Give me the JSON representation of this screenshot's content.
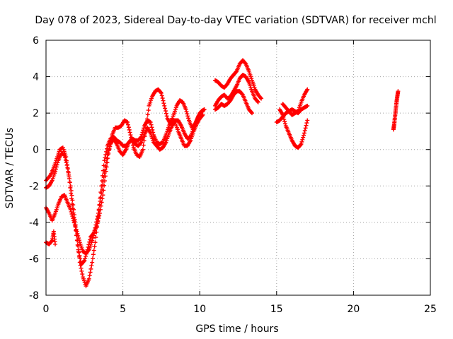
{
  "chart_data": {
    "type": "scatter",
    "title": "Day 078 of 2023, Sidereal Day-to-day VTEC variation (SDTVAR) for receiver mchl",
    "xlabel": "GPS time / hours",
    "ylabel": "SDTVAR / TECUs",
    "xlim": [
      0,
      25
    ],
    "ylim": [
      -8,
      6
    ],
    "xticks": [
      0,
      5,
      10,
      15,
      20,
      25
    ],
    "yticks": [
      -8,
      -6,
      -4,
      -2,
      0,
      2,
      4,
      6
    ],
    "grid": true,
    "marker": "+",
    "colors": {
      "series": "#ff0000",
      "grid": "#a0a0a0",
      "axis": "#000000"
    },
    "series": [
      {
        "values": [
          [
            0.0,
            -1.7
          ],
          [
            0.3,
            -1.4
          ],
          [
            0.5,
            -1.0
          ],
          [
            0.7,
            -0.5
          ],
          [
            0.9,
            0.0
          ],
          [
            1.1,
            0.1
          ],
          [
            1.3,
            -0.4
          ],
          [
            1.5,
            -1.5
          ],
          [
            1.7,
            -3.0
          ],
          [
            1.9,
            -4.2
          ],
          [
            2.1,
            -5.5
          ],
          [
            2.3,
            -6.3
          ],
          [
            2.5,
            -6.1
          ],
          [
            2.7,
            -5.5
          ],
          [
            2.9,
            -4.8
          ],
          [
            3.1,
            -4.6
          ],
          [
            3.3,
            -4.2
          ],
          [
            3.5,
            -3.5
          ],
          [
            3.7,
            -2.5
          ],
          [
            3.9,
            -1.2
          ],
          [
            4.1,
            0.0
          ],
          [
            4.3,
            0.8
          ],
          [
            4.5,
            1.2
          ],
          [
            4.7,
            1.2
          ],
          [
            4.9,
            1.3
          ],
          [
            5.1,
            1.6
          ],
          [
            5.3,
            1.5
          ],
          [
            5.5,
            0.8
          ],
          [
            5.7,
            0.1
          ],
          [
            5.9,
            -0.3
          ],
          [
            6.1,
            -0.4
          ],
          [
            6.3,
            0.0
          ],
          [
            6.5,
            1.2
          ],
          [
            6.7,
            2.4
          ],
          [
            6.9,
            2.9
          ],
          [
            7.1,
            3.2
          ],
          [
            7.3,
            3.3
          ],
          [
            7.5,
            3.1
          ],
          [
            7.7,
            2.4
          ],
          [
            7.9,
            1.7
          ],
          [
            8.1,
            1.4
          ],
          [
            8.3,
            1.9
          ],
          [
            8.5,
            2.4
          ],
          [
            8.7,
            2.7
          ],
          [
            8.9,
            2.6
          ],
          [
            9.1,
            2.2
          ],
          [
            9.3,
            1.6
          ],
          [
            9.5,
            1.2
          ],
          [
            9.7,
            1.4
          ],
          [
            9.9,
            1.8
          ],
          [
            10.1,
            2.1
          ],
          [
            10.3,
            2.2
          ]
        ]
      },
      {
        "values": [
          [
            0.0,
            -2.1
          ],
          [
            0.2,
            -2.0
          ],
          [
            0.4,
            -1.7
          ],
          [
            0.6,
            -1.2
          ],
          [
            0.8,
            -0.6
          ],
          [
            1.0,
            -0.2
          ],
          [
            1.2,
            -0.3
          ],
          [
            1.4,
            -1.0
          ],
          [
            1.6,
            -2.0
          ],
          [
            1.8,
            -3.3
          ],
          [
            2.0,
            -4.7
          ],
          [
            2.2,
            -6.2
          ],
          [
            2.4,
            -7.0
          ],
          [
            2.6,
            -7.5
          ],
          [
            2.8,
            -7.1
          ],
          [
            3.0,
            -6.2
          ],
          [
            3.2,
            -5.1
          ],
          [
            3.4,
            -3.7
          ],
          [
            3.6,
            -2.0
          ],
          [
            3.8,
            -0.6
          ],
          [
            4.0,
            0.2
          ],
          [
            4.2,
            0.6
          ],
          [
            4.4,
            0.7
          ],
          [
            4.6,
            0.5
          ],
          [
            4.8,
            0.4
          ],
          [
            5.0,
            0.2
          ],
          [
            5.2,
            0.2
          ],
          [
            5.4,
            0.4
          ],
          [
            5.6,
            0.6
          ],
          [
            5.8,
            0.5
          ],
          [
            6.0,
            0.5
          ],
          [
            6.2,
            0.7
          ],
          [
            6.4,
            1.3
          ],
          [
            6.6,
            1.6
          ],
          [
            6.8,
            1.5
          ],
          [
            7.0,
            0.8
          ],
          [
            7.2,
            0.4
          ],
          [
            7.4,
            0.3
          ],
          [
            7.6,
            0.4
          ],
          [
            7.8,
            0.8
          ],
          [
            8.0,
            1.3
          ],
          [
            8.2,
            1.7
          ],
          [
            8.4,
            1.5
          ],
          [
            8.6,
            1.0
          ],
          [
            8.8,
            0.6
          ],
          [
            9.0,
            0.2
          ],
          [
            9.2,
            0.2
          ],
          [
            9.4,
            0.5
          ],
          [
            9.6,
            1.0
          ],
          [
            9.8,
            1.4
          ],
          [
            10.0,
            1.7
          ],
          [
            10.2,
            1.9
          ]
        ]
      },
      {
        "values": [
          [
            0.0,
            -3.2
          ],
          [
            0.2,
            -3.5
          ],
          [
            0.4,
            -3.9
          ],
          [
            0.6,
            -3.5
          ],
          [
            0.8,
            -3.0
          ],
          [
            1.0,
            -2.6
          ],
          [
            1.2,
            -2.5
          ],
          [
            1.4,
            -2.9
          ],
          [
            1.6,
            -3.3
          ],
          [
            1.8,
            -3.9
          ],
          [
            2.0,
            -4.5
          ],
          [
            2.2,
            -5.1
          ],
          [
            2.4,
            -5.6
          ],
          [
            2.6,
            -5.7
          ],
          [
            2.8,
            -5.5
          ],
          [
            3.0,
            -5.0
          ],
          [
            3.2,
            -4.3
          ],
          [
            3.4,
            -3.5
          ],
          [
            3.6,
            -2.4
          ],
          [
            3.8,
            -1.3
          ],
          [
            4.0,
            -0.3
          ],
          [
            4.2,
            0.3
          ],
          [
            4.4,
            0.6
          ],
          [
            4.6,
            0.3
          ],
          [
            4.8,
            -0.1
          ],
          [
            5.0,
            -0.3
          ],
          [
            5.2,
            0.0
          ],
          [
            5.4,
            0.4
          ],
          [
            5.6,
            0.6
          ],
          [
            5.8,
            0.3
          ],
          [
            6.0,
            0.2
          ],
          [
            6.2,
            0.4
          ],
          [
            6.4,
            0.8
          ],
          [
            6.6,
            1.2
          ],
          [
            6.8,
            0.9
          ],
          [
            7.0,
            0.4
          ],
          [
            7.2,
            0.2
          ],
          [
            7.4,
            0.0
          ],
          [
            7.6,
            0.1
          ],
          [
            7.8,
            0.4
          ],
          [
            8.0,
            0.9
          ],
          [
            8.2,
            1.3
          ],
          [
            8.4,
            1.6
          ],
          [
            8.6,
            1.6
          ],
          [
            8.8,
            1.3
          ],
          [
            9.0,
            0.9
          ],
          [
            9.2,
            0.6
          ],
          [
            9.4,
            0.7
          ],
          [
            9.6,
            1.2
          ],
          [
            9.8,
            1.6
          ],
          [
            10.0,
            2.0
          ],
          [
            10.2,
            2.1
          ]
        ]
      },
      {
        "values": [
          [
            0.0,
            -5.1
          ],
          [
            0.2,
            -5.2
          ],
          [
            0.4,
            -5.0
          ],
          [
            0.5,
            -4.5
          ],
          [
            0.6,
            -5.2
          ]
        ]
      },
      {
        "values": [
          [
            11.0,
            3.8
          ],
          [
            11.2,
            3.7
          ],
          [
            11.4,
            3.5
          ],
          [
            11.6,
            3.4
          ],
          [
            11.8,
            3.6
          ],
          [
            12.0,
            3.9
          ],
          [
            12.2,
            4.1
          ],
          [
            12.4,
            4.3
          ],
          [
            12.6,
            4.7
          ],
          [
            12.8,
            4.9
          ],
          [
            13.0,
            4.7
          ],
          [
            13.2,
            4.3
          ],
          [
            13.4,
            3.8
          ],
          [
            13.6,
            3.3
          ],
          [
            13.8,
            3.0
          ],
          [
            14.0,
            2.8
          ]
        ]
      },
      {
        "values": [
          [
            11.0,
            2.4
          ],
          [
            11.2,
            2.7
          ],
          [
            11.4,
            2.9
          ],
          [
            11.6,
            3.0
          ],
          [
            11.8,
            2.8
          ],
          [
            12.0,
            2.9
          ],
          [
            12.2,
            3.2
          ],
          [
            12.4,
            3.5
          ],
          [
            12.6,
            3.9
          ],
          [
            12.8,
            4.1
          ],
          [
            13.0,
            4.0
          ],
          [
            13.2,
            3.7
          ],
          [
            13.4,
            3.2
          ],
          [
            13.6,
            2.8
          ],
          [
            13.8,
            2.6
          ]
        ]
      },
      {
        "values": [
          [
            11.0,
            2.2
          ],
          [
            11.2,
            2.3
          ],
          [
            11.4,
            2.5
          ],
          [
            11.6,
            2.4
          ],
          [
            11.8,
            2.5
          ],
          [
            12.0,
            2.7
          ],
          [
            12.2,
            3.0
          ],
          [
            12.4,
            3.2
          ],
          [
            12.6,
            3.2
          ],
          [
            12.8,
            3.0
          ],
          [
            13.0,
            2.6
          ],
          [
            13.2,
            2.2
          ],
          [
            13.4,
            2.0
          ]
        ]
      },
      {
        "values": [
          [
            15.0,
            1.5
          ],
          [
            15.2,
            1.6
          ],
          [
            15.4,
            1.8
          ],
          [
            15.6,
            2.0
          ],
          [
            15.8,
            2.1
          ],
          [
            16.0,
            2.2
          ],
          [
            16.2,
            2.1
          ],
          [
            16.4,
            2.0
          ],
          [
            16.6,
            2.2
          ],
          [
            16.8,
            2.3
          ],
          [
            17.0,
            2.4
          ]
        ]
      },
      {
        "values": [
          [
            15.2,
            2.2
          ],
          [
            15.4,
            1.9
          ],
          [
            15.6,
            1.3
          ],
          [
            15.8,
            0.9
          ],
          [
            16.0,
            0.5
          ],
          [
            16.2,
            0.2
          ],
          [
            16.4,
            0.1
          ],
          [
            16.6,
            0.3
          ],
          [
            16.8,
            0.9
          ],
          [
            17.0,
            1.6
          ]
        ]
      },
      {
        "values": [
          [
            15.4,
            2.5
          ],
          [
            15.6,
            2.3
          ],
          [
            15.8,
            2.1
          ],
          [
            16.0,
            1.9
          ],
          [
            16.2,
            2.0
          ],
          [
            16.4,
            2.1
          ],
          [
            16.6,
            2.6
          ],
          [
            16.8,
            3.0
          ],
          [
            17.0,
            3.3
          ]
        ]
      },
      {
        "values": [
          [
            22.6,
            1.1
          ],
          [
            22.65,
            1.4
          ],
          [
            22.7,
            1.8
          ],
          [
            22.75,
            2.2
          ],
          [
            22.8,
            2.6
          ],
          [
            22.85,
            2.9
          ],
          [
            22.9,
            3.2
          ]
        ]
      }
    ]
  }
}
